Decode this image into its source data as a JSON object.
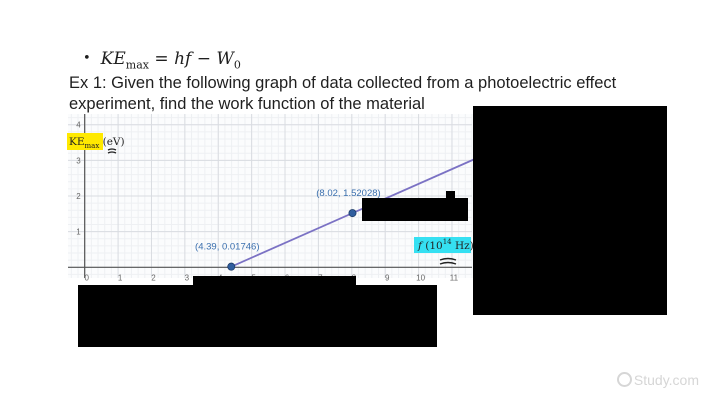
{
  "formula": {
    "bullet": "•",
    "lhs": "KE",
    "lhs_sub": "max",
    "equals": " = ",
    "rhs": "hf",
    "minus": " − ",
    "w": "W",
    "w_sub": "0"
  },
  "prompt_text": "Ex 1:  Given the following graph of data collected from a photoelectric effect experiment, find the work function of the material",
  "watermark": "Study.com",
  "colors": {
    "line": "#7b72c4",
    "point": "#2f5d9e",
    "label": "#3a6fae",
    "highlight_y": "#ffe900",
    "highlight_x": "#35e0f2",
    "grid_minor": "#eef0f3",
    "grid_major": "#d9dce1",
    "axis": "#555555"
  },
  "chart_data": {
    "type": "line",
    "y_axis_label": {
      "main": "KE",
      "sub": "max",
      "unit": " (eV)"
    },
    "x_axis_label": {
      "var": "f",
      "unit_open": " (10",
      "exp": "14",
      "unit_close": " Hz)"
    },
    "xlim": [
      -0.5,
      11.6
    ],
    "ylim": [
      -0.3,
      4.3
    ],
    "x_ticks": [
      0,
      1,
      2,
      3,
      4,
      5,
      6,
      7,
      8,
      9,
      10,
      11
    ],
    "y_ticks": [
      1,
      2,
      3,
      4
    ],
    "grid": true,
    "series": [
      {
        "points": [
          {
            "x": 4.39,
            "y": 0.01746,
            "label": "(4.39, 0.01746)"
          },
          {
            "x": 8.02,
            "y": 1.52028,
            "label": "(8.02, 1.52028)"
          }
        ]
      }
    ]
  }
}
